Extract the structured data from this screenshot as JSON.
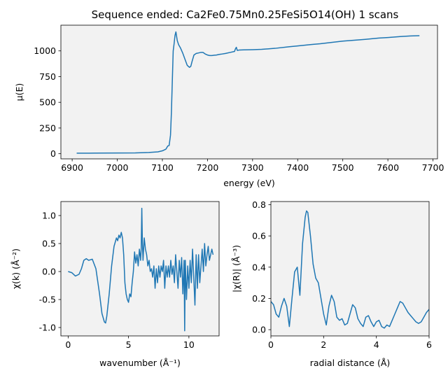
{
  "figure": {
    "title": "Sequence ended: Ca2Fe0.75Mn0.25FeSi5O14(OH)  1 scans",
    "line_color": "#1f77b4",
    "axes_background": "#f2f2f2"
  },
  "chart_data": [
    {
      "id": "mu",
      "type": "line",
      "xlabel": "energy (eV)",
      "ylabel": "μ(E)",
      "xlim": [
        6875,
        7710
      ],
      "ylim": [
        -50,
        1250
      ],
      "xticks": [
        6900,
        7000,
        7100,
        7200,
        7300,
        7400,
        7500,
        7600,
        7700
      ],
      "yticks": [
        0,
        250,
        500,
        750,
        1000
      ],
      "grid": false,
      "series": [
        {
          "x": [
            6910,
            6950,
            7000,
            7040,
            7070,
            7090,
            7100,
            7108,
            7112,
            7115,
            7118,
            7120,
            7122,
            7124,
            7126,
            7128,
            7130,
            7133,
            7136,
            7140,
            7145,
            7150,
            7155,
            7160,
            7163,
            7166,
            7170,
            7175,
            7180,
            7185,
            7190,
            7195,
            7200,
            7205,
            7210,
            7215,
            7220,
            7225,
            7230,
            7240,
            7250,
            7260,
            7262,
            7264,
            7266,
            7270,
            7280,
            7300,
            7320,
            7350,
            7380,
            7400,
            7430,
            7450,
            7480,
            7500,
            7530,
            7550,
            7580,
            7600,
            7630,
            7650,
            7670
          ],
          "y": [
            5,
            6,
            7,
            8,
            12,
            18,
            28,
            45,
            75,
            80,
            180,
            400,
            700,
            1000,
            1070,
            1150,
            1185,
            1100,
            1060,
            1030,
            980,
            920,
            860,
            840,
            850,
            900,
            960,
            975,
            980,
            985,
            985,
            970,
            960,
            955,
            955,
            958,
            960,
            965,
            968,
            975,
            985,
            995,
            1020,
            1035,
            1005,
            1008,
            1010,
            1012,
            1015,
            1025,
            1040,
            1048,
            1062,
            1070,
            1085,
            1095,
            1105,
            1112,
            1125,
            1130,
            1140,
            1145,
            1148
          ]
        }
      ]
    },
    {
      "id": "chik",
      "type": "line",
      "xlabel": "wavenumber (Å⁻¹)",
      "ylabel": "χ(k)  (Å⁻²)",
      "xlim": [
        -0.6,
        12.5
      ],
      "ylim": [
        -1.15,
        1.25
      ],
      "xticks": [
        0,
        5,
        10
      ],
      "yticks": [
        -1.0,
        -0.5,
        0.0,
        0.5,
        1.0
      ],
      "grid": false,
      "series": [
        {
          "x": [
            0,
            0.3,
            0.6,
            0.9,
            1.1,
            1.3,
            1.5,
            1.7,
            2.0,
            2.3,
            2.6,
            2.8,
            3.0,
            3.1,
            3.2,
            3.4,
            3.6,
            3.8,
            4.0,
            4.1,
            4.2,
            4.3,
            4.4,
            4.5,
            4.6,
            4.7,
            4.8,
            4.9,
            5.0,
            5.1,
            5.2,
            5.3,
            5.4,
            5.5,
            5.6,
            5.7,
            5.8,
            5.9,
            6.0,
            6.05,
            6.1,
            6.15,
            6.2,
            6.3,
            6.4,
            6.5,
            6.6,
            6.7,
            6.8,
            6.9,
            7.0,
            7.1,
            7.2,
            7.3,
            7.4,
            7.5,
            7.6,
            7.7,
            7.8,
            7.9,
            8.0,
            8.1,
            8.2,
            8.3,
            8.4,
            8.5,
            8.6,
            8.7,
            8.8,
            8.9,
            9.0,
            9.1,
            9.2,
            9.3,
            9.4,
            9.5,
            9.6,
            9.65,
            9.7,
            9.8,
            9.9,
            10.0,
            10.1,
            10.2,
            10.3,
            10.4,
            10.5,
            10.6,
            10.7,
            10.8,
            10.9,
            11.0,
            11.1,
            11.2,
            11.3,
            11.4,
            11.5,
            11.6,
            11.7,
            11.8,
            11.9,
            12.0
          ],
          "y": [
            0.0,
            -0.02,
            -0.08,
            -0.05,
            0.05,
            0.2,
            0.23,
            0.2,
            0.22,
            0.05,
            -0.4,
            -0.75,
            -0.9,
            -0.92,
            -0.8,
            -0.4,
            0.1,
            0.45,
            0.6,
            0.55,
            0.65,
            0.6,
            0.7,
            0.6,
            0.3,
            -0.2,
            -0.4,
            -0.5,
            -0.55,
            -0.4,
            -0.45,
            -0.2,
            0.0,
            0.35,
            0.15,
            0.3,
            0.1,
            0.4,
            0.2,
            0.4,
            1.13,
            0.5,
            0.2,
            0.6,
            0.4,
            0.3,
            0.1,
            0.2,
            0.0,
            0.05,
            -0.1,
            0.1,
            -0.3,
            0.05,
            -0.2,
            0.1,
            -0.1,
            0.1,
            0.0,
            0.2,
            -0.3,
            0.1,
            -0.1,
            0.1,
            -0.1,
            0.2,
            -0.05,
            0.1,
            -0.2,
            0.3,
            0.0,
            -0.3,
            0.2,
            -0.1,
            0.25,
            -0.4,
            0.2,
            -1.06,
            0.2,
            -0.5,
            0.1,
            -0.3,
            0.2,
            -0.2,
            0.4,
            -0.1,
            -0.6,
            0.3,
            -0.3,
            0.3,
            -0.2,
            0.1,
            0.4,
            0.0,
            0.5,
            0.1,
            0.3,
            0.45,
            0.2,
            0.3,
            0.4,
            0.3
          ]
        }
      ]
    },
    {
      "id": "chir",
      "type": "line",
      "xlabel": "radial distance (Å)",
      "ylabel": "|χ(R)|  (Å⁻³)",
      "xlim": [
        0,
        6
      ],
      "ylim": [
        -0.04,
        0.82
      ],
      "xticks": [
        0,
        2,
        4,
        6
      ],
      "yticks": [
        0.0,
        0.2,
        0.4,
        0.6,
        0.8
      ],
      "grid": false,
      "series": [
        {
          "x": [
            0,
            0.1,
            0.2,
            0.3,
            0.4,
            0.5,
            0.6,
            0.7,
            0.8,
            0.9,
            1.0,
            1.1,
            1.2,
            1.3,
            1.35,
            1.4,
            1.5,
            1.6,
            1.7,
            1.8,
            1.9,
            2.0,
            2.1,
            2.2,
            2.3,
            2.4,
            2.5,
            2.6,
            2.7,
            2.8,
            2.9,
            3.0,
            3.1,
            3.2,
            3.3,
            3.4,
            3.5,
            3.6,
            3.7,
            3.8,
            3.9,
            4.0,
            4.1,
            4.2,
            4.3,
            4.4,
            4.5,
            4.6,
            4.7,
            4.8,
            4.9,
            5.0,
            5.1,
            5.2,
            5.3,
            5.4,
            5.5,
            5.6,
            5.7,
            5.8,
            5.9,
            6.0
          ],
          "y": [
            0.18,
            0.16,
            0.1,
            0.08,
            0.15,
            0.2,
            0.15,
            0.02,
            0.2,
            0.37,
            0.4,
            0.22,
            0.55,
            0.72,
            0.76,
            0.75,
            0.6,
            0.42,
            0.33,
            0.3,
            0.2,
            0.1,
            0.03,
            0.15,
            0.22,
            0.18,
            0.08,
            0.06,
            0.07,
            0.03,
            0.04,
            0.1,
            0.16,
            0.14,
            0.07,
            0.04,
            0.02,
            0.08,
            0.09,
            0.05,
            0.02,
            0.05,
            0.06,
            0.02,
            0.01,
            0.03,
            0.02,
            0.06,
            0.1,
            0.14,
            0.18,
            0.17,
            0.14,
            0.11,
            0.09,
            0.07,
            0.05,
            0.04,
            0.05,
            0.08,
            0.11,
            0.13
          ]
        }
      ]
    }
  ]
}
